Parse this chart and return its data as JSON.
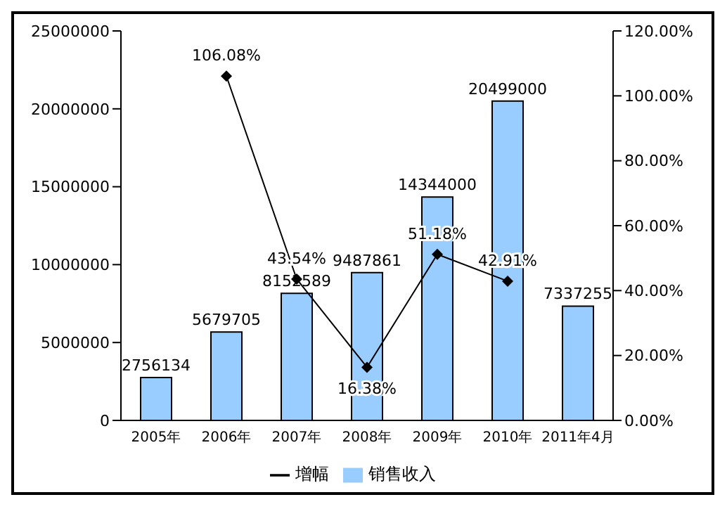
{
  "chart_data": {
    "type": "bar",
    "categories": [
      "2005年",
      "2006年",
      "2007年",
      "2008年",
      "2009年",
      "2010年",
      "2011年4月"
    ],
    "series": [
      {
        "name": "销售收入",
        "color": "#99ccff",
        "values": [
          2756134,
          5679705,
          8152589,
          9487861,
          14344000,
          20499000,
          7337255
        ],
        "value_labels": [
          "2756134",
          "5679705",
          "8152589",
          "9487861",
          "14344000",
          "20499000",
          "7337255"
        ]
      },
      {
        "name": "增幅",
        "type": "line",
        "axis": "y2",
        "color": "#000000",
        "marker": "diamond",
        "values": [
          null,
          106.08,
          43.54,
          16.38,
          51.18,
          42.91,
          null
        ],
        "value_labels": [
          null,
          "106.08%",
          "43.54%",
          "16.38%",
          "51.18%",
          "42.91%",
          null
        ]
      }
    ],
    "ylim": [
      0,
      25000000
    ],
    "yticks": [
      0,
      5000000,
      10000000,
      15000000,
      20000000,
      25000000
    ],
    "y2lim": [
      0,
      120
    ],
    "y2ticks": [
      {
        "value": 0,
        "label": "0.00%"
      },
      {
        "value": 20,
        "label": "20.00%"
      },
      {
        "value": 40,
        "label": "40.00%"
      },
      {
        "value": 60,
        "label": "60.00%"
      },
      {
        "value": 80,
        "label": "80.00%"
      },
      {
        "value": 100,
        "label": "100.00%"
      },
      {
        "value": 120,
        "label": "120.00%"
      }
    ],
    "grid": false,
    "legend": "bottom"
  }
}
